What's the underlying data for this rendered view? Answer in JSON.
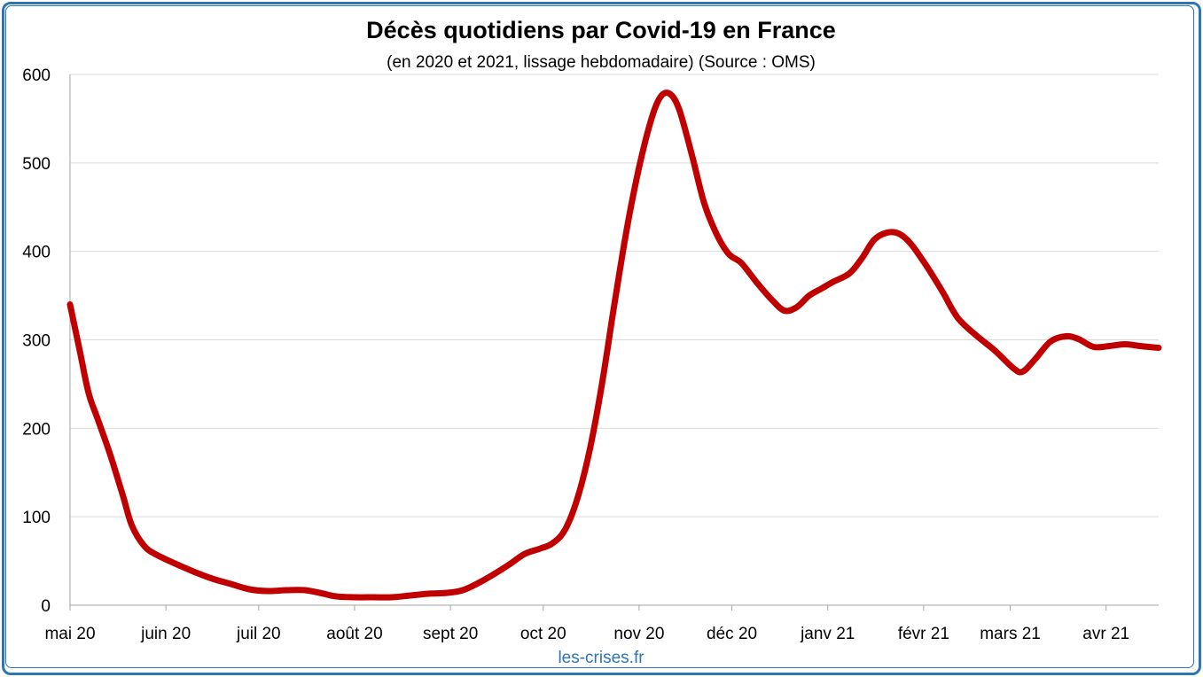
{
  "chart_data": {
    "type": "line",
    "title": "Décès quotidiens par Covid-19 en France",
    "subtitle": "(en 2020 et 2021, lissage hebdomadaire) (Source : OMS)",
    "source": "les-crises.fr",
    "xlabel": "",
    "ylabel": "",
    "ylim": [
      0,
      600
    ],
    "yticks": [
      "0",
      "100",
      "200",
      "300",
      "400",
      "500",
      "600"
    ],
    "x_tick_labels": [
      "mai 20",
      "juin 20",
      "juil 20",
      "août 20",
      "sept 20",
      "oct 20",
      "nov 20",
      "déc 20",
      "janv 21",
      "févr 21",
      "mars 21",
      "avr 21"
    ],
    "x_tick_dates": [
      "2020-05-01",
      "2020-06-01",
      "2020-07-01",
      "2020-08-01",
      "2020-09-01",
      "2020-10-01",
      "2020-11-01",
      "2020-12-01",
      "2021-01-01",
      "2021-02-01",
      "2021-03-01",
      "2021-04-01"
    ],
    "xlim": [
      "2020-05-01",
      "2021-04-18"
    ],
    "grid": "horizontal",
    "legend": "none",
    "series": [
      {
        "color": "#c00000",
        "points": [
          [
            "2020-05-01",
            340
          ],
          [
            "2020-05-04",
            290
          ],
          [
            "2020-05-07",
            240
          ],
          [
            "2020-05-10",
            210
          ],
          [
            "2020-05-14",
            170
          ],
          [
            "2020-05-18",
            125
          ],
          [
            "2020-05-21",
            90
          ],
          [
            "2020-05-25",
            67
          ],
          [
            "2020-05-29",
            57
          ],
          [
            "2020-06-04",
            47
          ],
          [
            "2020-06-10",
            38
          ],
          [
            "2020-06-16",
            30
          ],
          [
            "2020-06-22",
            24
          ],
          [
            "2020-06-28",
            18
          ],
          [
            "2020-07-04",
            16
          ],
          [
            "2020-07-10",
            17
          ],
          [
            "2020-07-16",
            17
          ],
          [
            "2020-07-22",
            13
          ],
          [
            "2020-07-26",
            10
          ],
          [
            "2020-08-01",
            9
          ],
          [
            "2020-08-07",
            9
          ],
          [
            "2020-08-13",
            9
          ],
          [
            "2020-08-19",
            11
          ],
          [
            "2020-08-25",
            13
          ],
          [
            "2020-08-31",
            14
          ],
          [
            "2020-09-05",
            17
          ],
          [
            "2020-09-10",
            25
          ],
          [
            "2020-09-15",
            35
          ],
          [
            "2020-09-20",
            46
          ],
          [
            "2020-09-25",
            58
          ],
          [
            "2020-09-30",
            64
          ],
          [
            "2020-10-04",
            70
          ],
          [
            "2020-10-08",
            85
          ],
          [
            "2020-10-12",
            120
          ],
          [
            "2020-10-16",
            175
          ],
          [
            "2020-10-20",
            250
          ],
          [
            "2020-10-24",
            340
          ],
          [
            "2020-10-28",
            425
          ],
          [
            "2020-11-01",
            495
          ],
          [
            "2020-11-05",
            550
          ],
          [
            "2020-11-08",
            575
          ],
          [
            "2020-11-11",
            578
          ],
          [
            "2020-11-14",
            560
          ],
          [
            "2020-11-18",
            510
          ],
          [
            "2020-11-22",
            455
          ],
          [
            "2020-11-26",
            420
          ],
          [
            "2020-11-30",
            397
          ],
          [
            "2020-12-04",
            387
          ],
          [
            "2020-12-09",
            365
          ],
          [
            "2020-12-14",
            345
          ],
          [
            "2020-12-18",
            333
          ],
          [
            "2020-12-22",
            337
          ],
          [
            "2020-12-26",
            350
          ],
          [
            "2020-12-30",
            358
          ],
          [
            "2021-01-03",
            366
          ],
          [
            "2021-01-08",
            375
          ],
          [
            "2021-01-12",
            392
          ],
          [
            "2021-01-16",
            413
          ],
          [
            "2021-01-20",
            421
          ],
          [
            "2021-01-24",
            420
          ],
          [
            "2021-01-28",
            408
          ],
          [
            "2021-02-02",
            383
          ],
          [
            "2021-02-07",
            355
          ],
          [
            "2021-02-12",
            325
          ],
          [
            "2021-02-18",
            305
          ],
          [
            "2021-02-24",
            288
          ],
          [
            "2021-03-02",
            268
          ],
          [
            "2021-03-05",
            264
          ],
          [
            "2021-03-09",
            278
          ],
          [
            "2021-03-14",
            298
          ],
          [
            "2021-03-19",
            304
          ],
          [
            "2021-03-23",
            301
          ],
          [
            "2021-03-28",
            292
          ],
          [
            "2021-04-02",
            293
          ],
          [
            "2021-04-07",
            295
          ],
          [
            "2021-04-12",
            293
          ],
          [
            "2021-04-18",
            291
          ]
        ]
      }
    ]
  }
}
